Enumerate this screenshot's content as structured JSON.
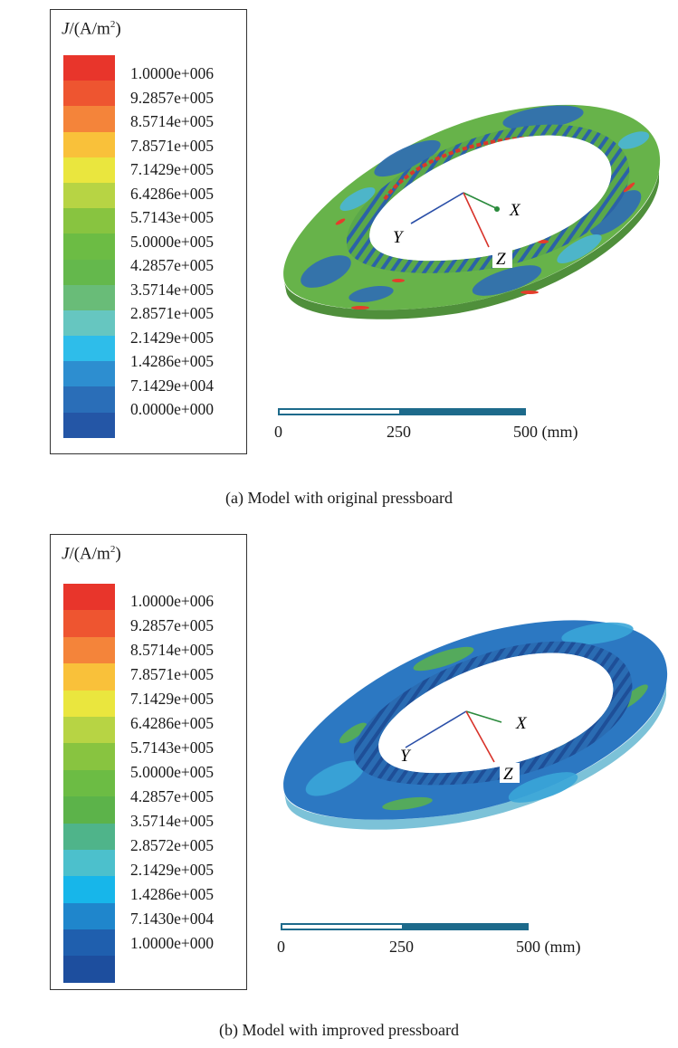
{
  "panels": [
    {
      "legend": {
        "title_symbol": "J",
        "title_unit": "/(A/m",
        "title_exp": "2",
        "title_close": ")",
        "labels": [
          "1.0000e+006",
          "9.2857e+005",
          "8.5714e+005",
          "7.8571e+005",
          "7.1429e+005",
          "6.4286e+005",
          "5.7143e+005",
          "5.0000e+005",
          "4.2857e+005",
          "3.5714e+005",
          "2.8571e+005",
          "2.1429e+005",
          "1.4286e+005",
          "7.1429e+004",
          "0.0000e+000"
        ],
        "colors": [
          "#e8352b",
          "#ee5530",
          "#f4843a",
          "#f9c13a",
          "#eae63e",
          "#b7d444",
          "#88c440",
          "#6cbc44",
          "#64b84c",
          "#69bc78",
          "#66c6c0",
          "#2ebdea",
          "#2d8ed0",
          "#2a6eb8",
          "#2456a6"
        ]
      },
      "scale": {
        "ticks": [
          "0",
          "250",
          "500 (mm)"
        ]
      },
      "axes": {
        "x": "X",
        "y": "Y",
        "z": "Z"
      },
      "caption": "(a) Model with original pressboard"
    },
    {
      "legend": {
        "title_symbol": "J",
        "title_unit": "/(A/m",
        "title_exp": "2",
        "title_close": ")",
        "labels": [
          "1.0000e+006",
          "9.2857e+005",
          "8.5714e+005",
          "7.8571e+005",
          "7.1429e+005",
          "6.4286e+005",
          "5.7143e+005",
          "5.0000e+005",
          "4.2857e+005",
          "3.5714e+005",
          "2.8572e+005",
          "2.1429e+005",
          "1.4286e+005",
          "7.1430e+004",
          "1.0000e+000"
        ],
        "colors": [
          "#e8352b",
          "#ee5530",
          "#f4843a",
          "#f9c13a",
          "#eae63e",
          "#b7d444",
          "#88c440",
          "#6cbc44",
          "#5cb34a",
          "#4fb48a",
          "#4cc0cc",
          "#17b6ea",
          "#1f86cc",
          "#1f5fae",
          "#1d4e9e"
        ]
      },
      "scale": {
        "ticks": [
          "0",
          "250",
          "500 (mm)"
        ]
      },
      "axes": {
        "x": "X",
        "y": "Y",
        "z": "Z"
      },
      "caption": "(b) Model with improved pressboard"
    }
  ]
}
